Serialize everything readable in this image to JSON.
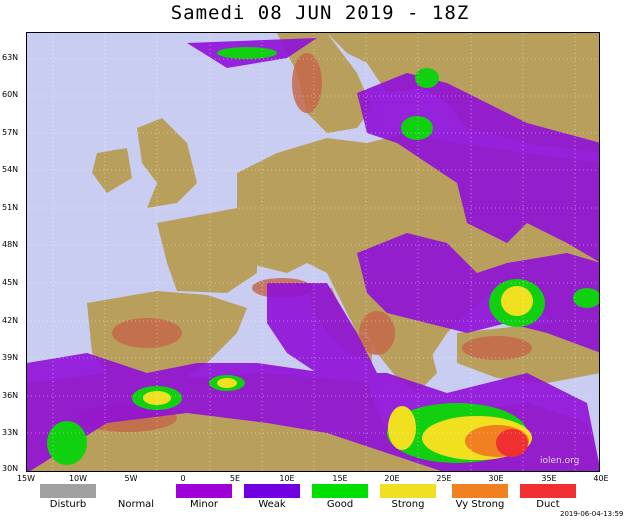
{
  "title": "Samedi 08 JUN 2019 - 18Z",
  "lat_labels": [
    "63N",
    "60N",
    "57N",
    "54N",
    "51N",
    "48N",
    "45N",
    "42N",
    "39N",
    "36N",
    "33N",
    "30N"
  ],
  "lon_labels": [
    "15W",
    "10W",
    "5W",
    "0",
    "5E",
    "10E",
    "15E",
    "20E",
    "25E",
    "30E",
    "35E",
    "40E"
  ],
  "legend": [
    {
      "label": "Disturb",
      "color": "#a0a0a0"
    },
    {
      "label": "Normal",
      "color": "#ffffff"
    },
    {
      "label": "Minor",
      "color": "#a000d8"
    },
    {
      "label": "Weak",
      "color": "#7000e0"
    },
    {
      "label": "Good",
      "color": "#00e000"
    },
    {
      "label": "Strong",
      "color": "#f0e020"
    },
    {
      "label": "Vy Strong",
      "color": "#f08020"
    },
    {
      "label": "Duct",
      "color": "#f03030"
    }
  ],
  "watermark": "iolen.org",
  "timestamp": "2019-06-04-13:59",
  "colors": {
    "sea": "#c9cdf2",
    "land": "#b8a060",
    "mountain": "#c06040"
  }
}
